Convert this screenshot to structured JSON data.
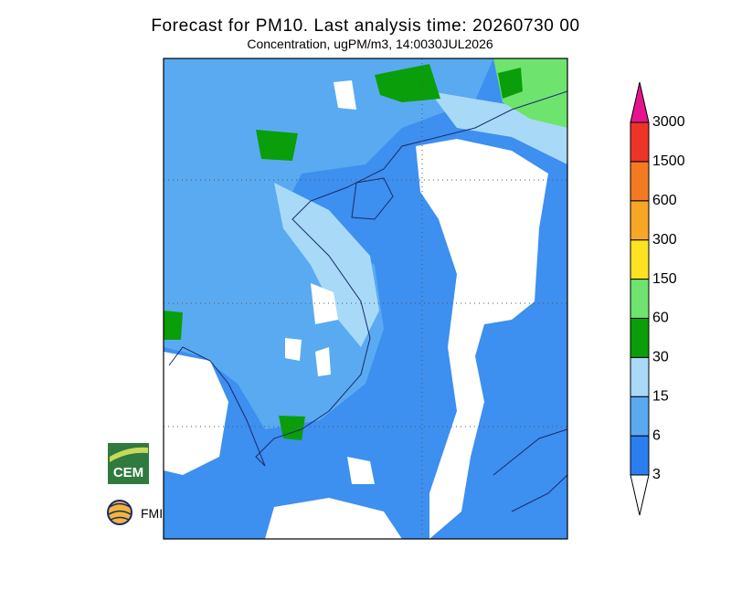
{
  "header": {
    "title": "Forecast for PM10. Last analysis time: 20260730 00",
    "subtitle": "Concentration, ugPM/m3, 14:0030JUL2026"
  },
  "colorbar": {
    "levels": [
      "3",
      "6",
      "15",
      "30",
      "60",
      "150",
      "300",
      "600",
      "1500",
      "3000"
    ],
    "colors": [
      "#ffffff",
      "#2a7ef0",
      "#5aaaf2",
      "#a8daf8",
      "#0a9e0a",
      "#6ee46e",
      "#fde222",
      "#f8a626",
      "#f47a22",
      "#ee3428",
      "#e6148c"
    ]
  },
  "logos": {
    "cem": "CEM",
    "fmi": "FMI"
  }
}
